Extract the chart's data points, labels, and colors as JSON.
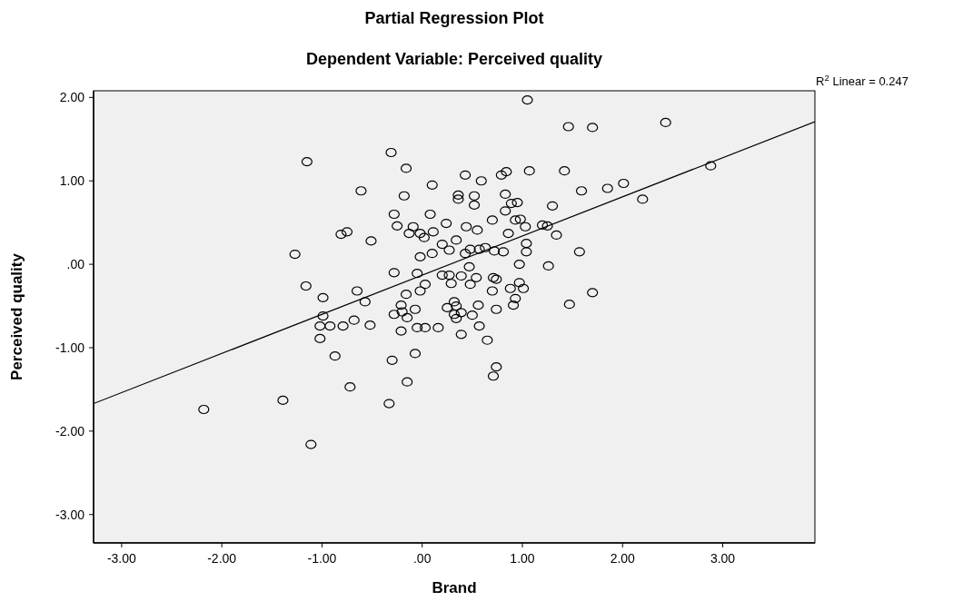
{
  "chart_data": {
    "type": "scatter",
    "title": "Partial Regression Plot",
    "subtitle": "Dependent Variable: Perceived quality",
    "xlabel": "Brand",
    "ylabel": "Perceived quality",
    "annotations": [
      "R$^{2}$ Linear = 0.247"
    ],
    "xlim": [
      -3.28,
      3.92
    ],
    "ylim": [
      -3.34,
      2.08
    ],
    "xticks": [
      {
        "value": -3,
        "label": "-3.00"
      },
      {
        "value": -2,
        "label": "-2.00"
      },
      {
        "value": -1,
        "label": "-1.00"
      },
      {
        "value": 0,
        "label": ".00"
      },
      {
        "value": 1,
        "label": "1.00"
      },
      {
        "value": 2,
        "label": "2.00"
      },
      {
        "value": 3,
        "label": "3.00"
      }
    ],
    "yticks": [
      {
        "value": -3,
        "label": "-3.00"
      },
      {
        "value": -2,
        "label": "-2.00"
      },
      {
        "value": -1,
        "label": "-1.00"
      },
      {
        "value": 0,
        "label": ".00"
      },
      {
        "value": 1,
        "label": "1.00"
      },
      {
        "value": 2,
        "label": "2.00"
      }
    ],
    "grid": false,
    "marker": "circle",
    "series": [
      {
        "color": "#000000",
        "x": [
          -1.15,
          -0.31,
          -0.16,
          0.1,
          -0.61,
          -0.18,
          -0.28,
          0.08,
          0.24,
          -0.25,
          -0.09,
          -0.13,
          -0.02,
          0.02,
          0.11,
          -0.81,
          -0.75,
          -0.51,
          -1.27,
          -0.02,
          0.1,
          0.2,
          0.27,
          -0.28,
          -0.05,
          0.2,
          0.27,
          0.03,
          -0.02,
          -0.16,
          -1.16,
          -0.99,
          -0.65,
          -0.57,
          -0.21,
          -0.07,
          0.25,
          -0.99,
          -1.02,
          -0.92,
          -0.79,
          -0.68,
          -0.52,
          -1.02,
          -0.87,
          -0.3,
          -0.07,
          -0.28,
          -0.2,
          -0.15,
          -0.21,
          -0.05,
          0.03,
          0.16,
          -0.72,
          -0.15,
          -1.39,
          -0.33,
          -2.18,
          -1.11,
          1.05,
          1.46,
          1.7,
          2.43,
          2.88,
          1.07,
          1.42,
          0.79,
          0.84,
          0.43,
          0.59,
          1.59,
          1.85,
          2.01,
          2.2,
          0.36,
          0.36,
          0.52,
          0.52,
          0.83,
          0.89,
          0.95,
          0.83,
          1.3,
          0.7,
          0.93,
          0.98,
          1.03,
          1.2,
          1.25,
          1.34,
          0.44,
          0.55,
          0.86,
          0.34,
          0.48,
          0.57,
          0.63,
          0.72,
          0.81,
          1.04,
          1.04,
          1.57,
          0.43,
          0.47,
          0.97,
          1.26,
          0.29,
          0.39,
          0.54,
          0.71,
          0.74,
          0.48,
          0.7,
          0.88,
          1.01,
          0.97,
          0.32,
          0.34,
          0.56,
          0.91,
          0.93,
          1.47,
          1.7,
          0.74,
          0.32,
          0.39,
          0.5,
          0.34,
          0.57,
          0.39,
          0.65,
          0.74,
          0.71
        ],
        "values": [
          1.23,
          1.34,
          1.15,
          0.95,
          0.88,
          0.82,
          0.6,
          0.6,
          0.49,
          0.46,
          0.45,
          0.37,
          0.37,
          0.32,
          0.39,
          0.36,
          0.39,
          0.28,
          0.12,
          0.09,
          0.13,
          0.24,
          0.17,
          -0.1,
          -0.11,
          -0.13,
          -0.13,
          -0.24,
          -0.32,
          -0.36,
          -0.26,
          -0.4,
          -0.32,
          -0.45,
          -0.49,
          -0.54,
          -0.52,
          -0.62,
          -0.74,
          -0.74,
          -0.74,
          -0.67,
          -0.73,
          -0.89,
          -1.1,
          -1.15,
          -1.07,
          -0.6,
          -0.57,
          -0.64,
          -0.8,
          -0.76,
          -0.76,
          -0.76,
          -1.47,
          -1.41,
          -1.63,
          -1.67,
          -1.74,
          -2.16,
          1.97,
          1.65,
          1.64,
          1.7,
          1.18,
          1.12,
          1.12,
          1.07,
          1.11,
          1.07,
          1.0,
          0.88,
          0.91,
          0.97,
          0.78,
          0.83,
          0.78,
          0.82,
          0.71,
          0.84,
          0.73,
          0.74,
          0.64,
          0.7,
          0.53,
          0.53,
          0.54,
          0.45,
          0.47,
          0.46,
          0.35,
          0.45,
          0.41,
          0.37,
          0.29,
          0.18,
          0.18,
          0.2,
          0.16,
          0.15,
          0.25,
          0.15,
          0.15,
          0.13,
          -0.03,
          0.0,
          -0.02,
          -0.23,
          -0.14,
          -0.16,
          -0.16,
          -0.18,
          -0.24,
          -0.32,
          -0.29,
          -0.29,
          -0.22,
          -0.45,
          -0.5,
          -0.49,
          -0.49,
          -0.41,
          -0.48,
          -0.34,
          -0.54,
          -0.6,
          -0.58,
          -0.61,
          -0.65,
          -0.74,
          -0.84,
          -0.91,
          -1.23,
          -1.34
        ]
      },
      {
        "type": "line",
        "marker": "none",
        "color": "#000000",
        "x": [
          -3.28,
          3.92
        ],
        "values": [
          -1.67,
          1.71
        ]
      }
    ]
  }
}
